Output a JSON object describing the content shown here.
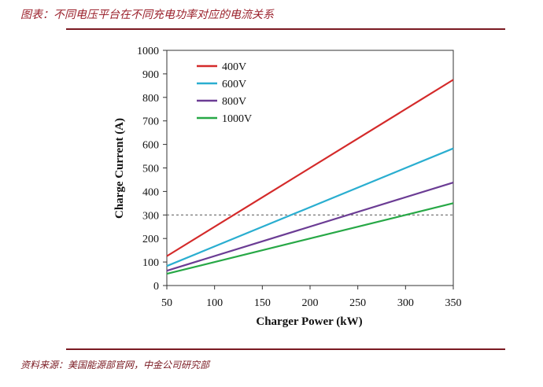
{
  "caption": "图表：不同电压平台在不同充电功率对应的电流关系",
  "source": "资料来源：美国能源部官网，中金公司研究部",
  "chart_data": {
    "type": "line",
    "xlabel": "Charger Power (kW)",
    "ylabel": "Charge Current (A)",
    "xlim": [
      50,
      350
    ],
    "ylim": [
      0,
      1000
    ],
    "xticks": [
      50,
      100,
      150,
      200,
      250,
      300,
      350
    ],
    "yticks": [
      0,
      100,
      200,
      300,
      400,
      500,
      600,
      700,
      800,
      900,
      1000
    ],
    "grid": false,
    "legend": "top-left",
    "reference_line": {
      "y": 300,
      "style": "dashed"
    },
    "series": [
      {
        "name": "400V",
        "color": "#d42a2a",
        "x": [
          50,
          350
        ],
        "y": [
          125,
          875
        ]
      },
      {
        "name": "600V",
        "color": "#2aaed0",
        "x": [
          50,
          350
        ],
        "y": [
          83,
          583
        ]
      },
      {
        "name": "800V",
        "color": "#6b3c94",
        "x": [
          50,
          350
        ],
        "y": [
          63,
          438
        ]
      },
      {
        "name": "1000V",
        "color": "#27a846",
        "x": [
          50,
          350
        ],
        "y": [
          50,
          350
        ]
      }
    ]
  }
}
